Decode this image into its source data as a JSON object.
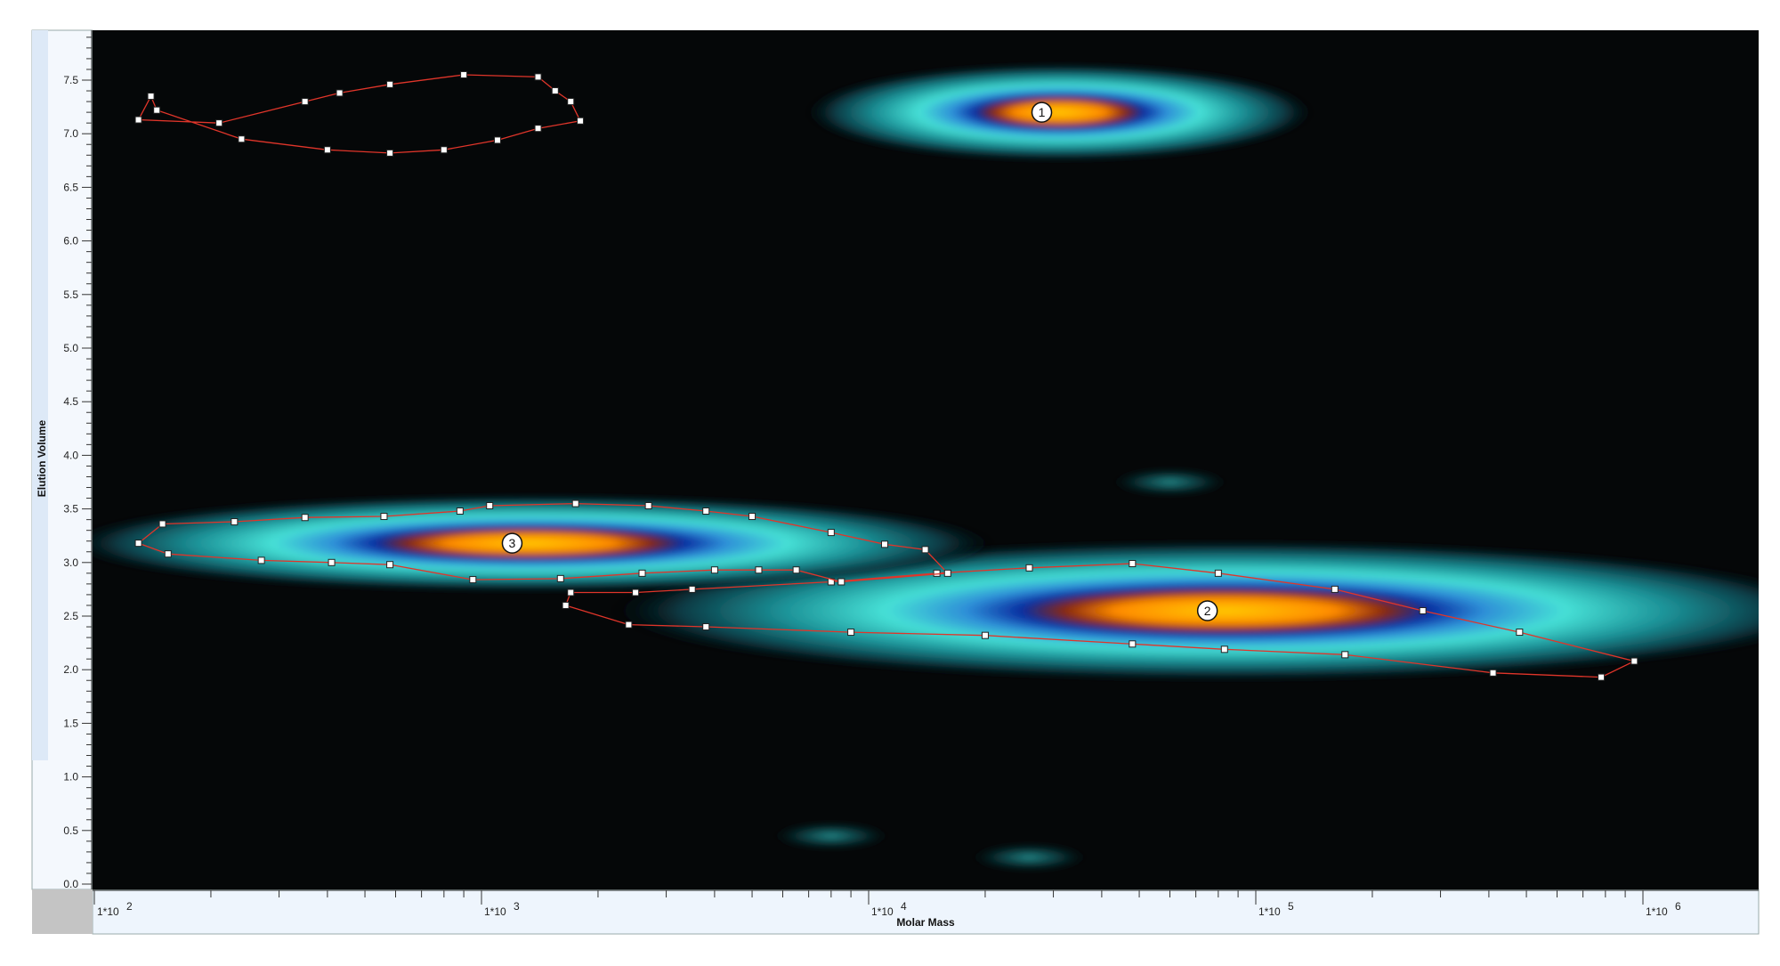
{
  "chart_data": {
    "type": "heatmap",
    "xlabel": "Molar Mass",
    "ylabel": "Elution Volume",
    "x_scale": "log",
    "xlim": [
      100,
      1500000
    ],
    "ylim": [
      0.0,
      8.0
    ],
    "x_ticks": [
      {
        "value": 100,
        "label": "1*10",
        "exp": "2"
      },
      {
        "value": 1000,
        "label": "1*10",
        "exp": "3"
      },
      {
        "value": 10000,
        "label": "1*10",
        "exp": "4"
      },
      {
        "value": 100000,
        "label": "1*10",
        "exp": "5"
      },
      {
        "value": 1000000,
        "label": "1*10",
        "exp": "6"
      }
    ],
    "y_ticks": [
      "0.0",
      "0.5",
      "1.0",
      "1.5",
      "2.0",
      "2.5",
      "3.0",
      "3.5",
      "4.0",
      "4.5",
      "5.0",
      "5.5",
      "6.0",
      "6.5",
      "7.0",
      "7.5"
    ],
    "colors": {
      "plot_background": "#050708",
      "peak_core": "#ff9a00",
      "peak_mid": "#3cd6d2",
      "peak_outer": "#0f5560",
      "region_outline": "#e0352a",
      "axis_background": "#e9f1fb"
    },
    "peaks": [
      {
        "label": "1",
        "mw": 28000,
        "ve": 7.2,
        "region": [
          [
            140,
            7.35
          ],
          [
            130,
            7.13
          ],
          [
            210,
            7.1
          ],
          [
            350,
            7.3
          ],
          [
            430,
            7.38
          ],
          [
            580,
            7.46
          ],
          [
            900,
            7.55
          ],
          [
            1400,
            7.53
          ],
          [
            1550,
            7.4
          ],
          [
            1700,
            7.3
          ],
          [
            1800,
            7.12
          ],
          [
            1400,
            7.05
          ],
          [
            1100,
            6.94
          ],
          [
            800,
            6.85
          ],
          [
            580,
            6.82
          ],
          [
            400,
            6.85
          ],
          [
            240,
            6.95
          ],
          [
            145,
            7.22
          ]
        ]
      },
      {
        "label": "2",
        "mw": 75000,
        "ve": 2.55,
        "region": [
          [
            1650,
            2.6
          ],
          [
            1700,
            2.72
          ],
          [
            2500,
            2.72
          ],
          [
            3500,
            2.75
          ],
          [
            8000,
            2.82
          ],
          [
            15000,
            2.9
          ],
          [
            26000,
            2.95
          ],
          [
            48000,
            2.99
          ],
          [
            80000,
            2.9
          ],
          [
            160000,
            2.75
          ],
          [
            270000,
            2.55
          ],
          [
            480000,
            2.35
          ],
          [
            950000,
            2.08
          ],
          [
            780000,
            1.93
          ],
          [
            410000,
            1.97
          ],
          [
            170000,
            2.14
          ],
          [
            83000,
            2.19
          ],
          [
            48000,
            2.24
          ],
          [
            20000,
            2.32
          ],
          [
            9000,
            2.35
          ],
          [
            3800,
            2.4
          ],
          [
            2400,
            2.42
          ]
        ]
      },
      {
        "label": "3",
        "mw": 1200,
        "ve": 3.18,
        "region": [
          [
            130,
            3.18
          ],
          [
            150,
            3.36
          ],
          [
            230,
            3.38
          ],
          [
            350,
            3.42
          ],
          [
            560,
            3.43
          ],
          [
            880,
            3.48
          ],
          [
            1050,
            3.53
          ],
          [
            1750,
            3.55
          ],
          [
            2700,
            3.53
          ],
          [
            3800,
            3.48
          ],
          [
            5000,
            3.43
          ],
          [
            8000,
            3.28
          ],
          [
            11000,
            3.17
          ],
          [
            14000,
            3.12
          ],
          [
            16000,
            2.9
          ],
          [
            8500,
            2.82
          ],
          [
            6500,
            2.93
          ],
          [
            5200,
            2.93
          ],
          [
            4000,
            2.93
          ],
          [
            2600,
            2.9
          ],
          [
            1600,
            2.85
          ],
          [
            950,
            2.84
          ],
          [
            580,
            2.98
          ],
          [
            410,
            3.0
          ],
          [
            270,
            3.02
          ],
          [
            155,
            3.08
          ]
        ]
      }
    ],
    "faint_spots": [
      {
        "mw": 8000,
        "ve": 0.45
      },
      {
        "mw": 26000,
        "ve": 0.25
      },
      {
        "mw": 60000,
        "ve": 3.75
      }
    ]
  }
}
